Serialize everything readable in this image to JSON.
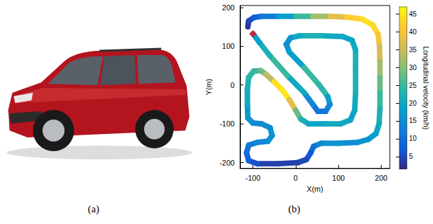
{
  "image": {
    "caption": "(a)"
  },
  "chart_data": {
    "type": "line",
    "caption": "(b)",
    "xlabel": "X(m)",
    "ylabel": "Y(m)",
    "xlim": [
      -130,
      220
    ],
    "ylim": [
      -215,
      205
    ],
    "xticks": [
      -100,
      0,
      100,
      200
    ],
    "yticks": [
      -200,
      -100,
      0,
      100,
      200
    ],
    "grid": false,
    "series": [
      {
        "type": "line",
        "x": [
          -112,
          -110,
          -98,
          -80,
          -40,
          0,
          40,
          80,
          120,
          155,
          180,
          193,
          196,
          197,
          197,
          197,
          197,
          195,
          188,
          170,
          145,
          100,
          60,
          42,
          35,
          25,
          5,
          -40,
          -90,
          -110,
          -115,
          -110,
          -90,
          -65,
          -55,
          -60,
          -80,
          -100,
          -112,
          -113,
          -113,
          -110,
          -98,
          -82,
          -70,
          -50,
          -30,
          -15,
          0,
          12,
          30,
          70,
          105,
          128,
          138,
          140,
          140,
          140,
          132,
          110,
          60,
          10,
          -12,
          -22,
          -15,
          20,
          55,
          75,
          80,
          70,
          52,
          40,
          20,
          -20,
          -60,
          -85,
          -100
        ],
        "y": [
          150,
          165,
          174,
          177,
          177,
          177,
          177,
          177,
          175,
          170,
          155,
          130,
          100,
          60,
          20,
          -20,
          -60,
          -100,
          -125,
          -140,
          -148,
          -150,
          -150,
          -158,
          -175,
          -192,
          -200,
          -203,
          -203,
          -195,
          -175,
          -155,
          -148,
          -145,
          -130,
          -110,
          -100,
          -98,
          -85,
          -50,
          -10,
          20,
          36,
          37,
          28,
          8,
          -15,
          -38,
          -65,
          -88,
          -100,
          -100,
          -100,
          -90,
          -65,
          -20,
          40,
          90,
          115,
          125,
          127,
          127,
          122,
          105,
          85,
          45,
          0,
          -30,
          -50,
          -68,
          -68,
          -50,
          -20,
          25,
          75,
          110,
          132
        ],
        "velocity": [
          3,
          5,
          8,
          12,
          18,
          25,
          32,
          38,
          42,
          44,
          43,
          40,
          36,
          32,
          28,
          25,
          22,
          20,
          18,
          16,
          15,
          16,
          14,
          10,
          7,
          5,
          4,
          4,
          6,
          8,
          10,
          12,
          14,
          15,
          16,
          15,
          14,
          15,
          17,
          20,
          22,
          24,
          25,
          28,
          34,
          44,
          45,
          38,
          28,
          22,
          19,
          20,
          20,
          19,
          20,
          22,
          22,
          20,
          19,
          20,
          22,
          20,
          16,
          15,
          18,
          25,
          24,
          18,
          14,
          11,
          11,
          14,
          20,
          25,
          22,
          18,
          15
        ]
      },
      {
        "type": "scatter",
        "marker": "diamond",
        "color": "#e3101b",
        "x": [
          -100
        ],
        "y": [
          132
        ]
      }
    ],
    "colorbar": {
      "label": "Longitudinal velocity (km/h)",
      "range": [
        1.5,
        47
      ],
      "ticks": [
        5,
        10,
        15,
        20,
        25,
        30,
        35,
        40,
        45
      ]
    }
  }
}
